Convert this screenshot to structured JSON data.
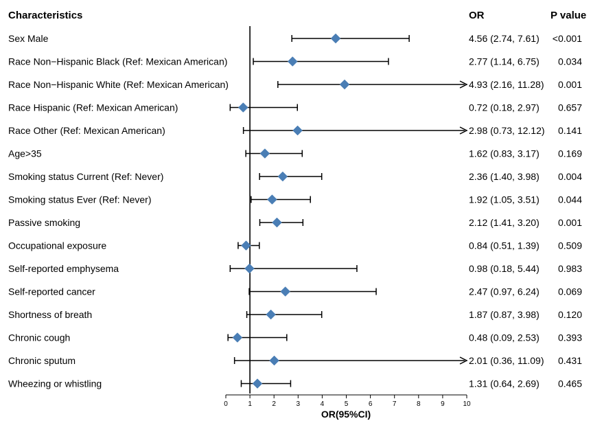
{
  "chart_data": {
    "type": "forest",
    "headers": {
      "characteristics": "Characteristics",
      "or": "OR",
      "p": "P value"
    },
    "xlabel": "OR(95%CI)",
    "xlim": [
      0,
      10
    ],
    "xticks": [
      "0",
      "1",
      "2",
      "3",
      "4",
      "5",
      "6",
      "7",
      "8",
      "9",
      "10"
    ],
    "reference_line": 1,
    "marker_color": "#4a7eb5",
    "rows": [
      {
        "label": "Sex Male",
        "or": 4.56,
        "lo": 2.74,
        "hi": 7.61,
        "or_text": "4.56 (2.74, 7.61)",
        "p": "<0.001"
      },
      {
        "label": "Race Non−Hispanic Black  (Ref: Mexican American)",
        "or": 2.77,
        "lo": 1.14,
        "hi": 6.75,
        "or_text": "2.77 (1.14, 6.75)",
        "p": "0.034"
      },
      {
        "label": "Race Non−Hispanic White  (Ref: Mexican American)",
        "or": 4.93,
        "lo": 2.16,
        "hi": 11.28,
        "or_text": "4.93 (2.16, 11.28)",
        "p": "0.001"
      },
      {
        "label": "Race Hispanic  (Ref: Mexican American)",
        "or": 0.72,
        "lo": 0.18,
        "hi": 2.97,
        "or_text": "0.72 (0.18, 2.97)",
        "p": "0.657"
      },
      {
        "label": "Race Other (Ref: Mexican American)",
        "or": 2.98,
        "lo": 0.73,
        "hi": 12.12,
        "or_text": "2.98 (0.73, 12.12)",
        "p": "0.141"
      },
      {
        "label": "Age>35",
        "or": 1.62,
        "lo": 0.83,
        "hi": 3.17,
        "or_text": "1.62 (0.83, 3.17)",
        "p": "0.169"
      },
      {
        "label": "Smoking status Current (Ref: Never)",
        "or": 2.36,
        "lo": 1.4,
        "hi": 3.98,
        "or_text": "2.36 (1.40, 3.98)",
        "p": "0.004"
      },
      {
        "label": "Smoking status Ever (Ref: Never)",
        "or": 1.92,
        "lo": 1.05,
        "hi": 3.51,
        "or_text": "1.92 (1.05, 3.51)",
        "p": "0.044"
      },
      {
        "label": "Passive smoking",
        "or": 2.12,
        "lo": 1.41,
        "hi": 3.2,
        "or_text": "2.12 (1.41, 3.20)",
        "p": "0.001"
      },
      {
        "label": "Occupational exposure",
        "or": 0.84,
        "lo": 0.51,
        "hi": 1.39,
        "or_text": "0.84 (0.51, 1.39)",
        "p": "0.509"
      },
      {
        "label": "Self-reported emphysema",
        "or": 0.98,
        "lo": 0.18,
        "hi": 5.44,
        "or_text": "0.98 (0.18, 5.44)",
        "p": "0.983"
      },
      {
        "label": "Self-reported cancer",
        "or": 2.47,
        "lo": 0.97,
        "hi": 6.24,
        "or_text": "2.47 (0.97, 6.24)",
        "p": "0.069"
      },
      {
        "label": "Shortness of breath",
        "or": 1.87,
        "lo": 0.87,
        "hi": 3.98,
        "or_text": "1.87 (0.87, 3.98)",
        "p": "0.120"
      },
      {
        "label": "Chronic cough",
        "or": 0.48,
        "lo": 0.09,
        "hi": 2.53,
        "or_text": "0.48 (0.09, 2.53)",
        "p": "0.393"
      },
      {
        "label": "Chronic sputum",
        "or": 2.01,
        "lo": 0.36,
        "hi": 11.09,
        "or_text": "2.01 (0.36, 11.09)",
        "p": "0.431"
      },
      {
        "label": "Wheezing or whistling",
        "or": 1.31,
        "lo": 0.64,
        "hi": 2.69,
        "or_text": "1.31 (0.64, 2.69)",
        "p": "0.465"
      }
    ]
  }
}
